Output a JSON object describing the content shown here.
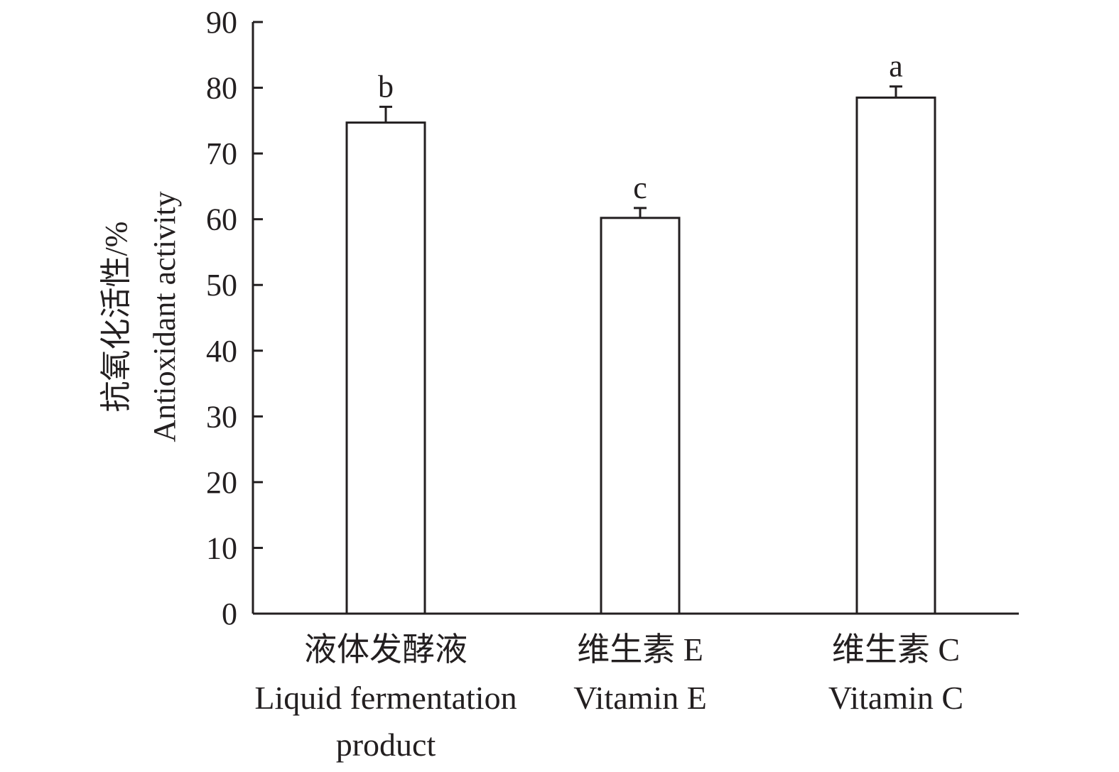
{
  "chart_data": {
    "type": "bar",
    "categories": [
      {
        "zh": "液体发酵液",
        "en_lines": [
          "Liquid fermentation",
          "product"
        ]
      },
      {
        "zh": "维生素 E",
        "en_lines": [
          "Vitamin E"
        ]
      },
      {
        "zh": "维生素 C",
        "en_lines": [
          "Vitamin C"
        ]
      }
    ],
    "values": [
      74.7,
      60.2,
      78.5
    ],
    "errors": [
      2.4,
      1.5,
      1.7
    ],
    "significance": [
      "b",
      "c",
      "a"
    ],
    "ylabel_zh": "抗氧化活性/%",
    "ylabel_en": "Antioxidant activity",
    "ylim": [
      0,
      90
    ],
    "yticks": [
      "0",
      "10",
      "20",
      "30",
      "40",
      "50",
      "60",
      "70",
      "80",
      "90"
    ],
    "grid": false,
    "bar_fill": "#ffffff",
    "line_color": "#231f20"
  }
}
